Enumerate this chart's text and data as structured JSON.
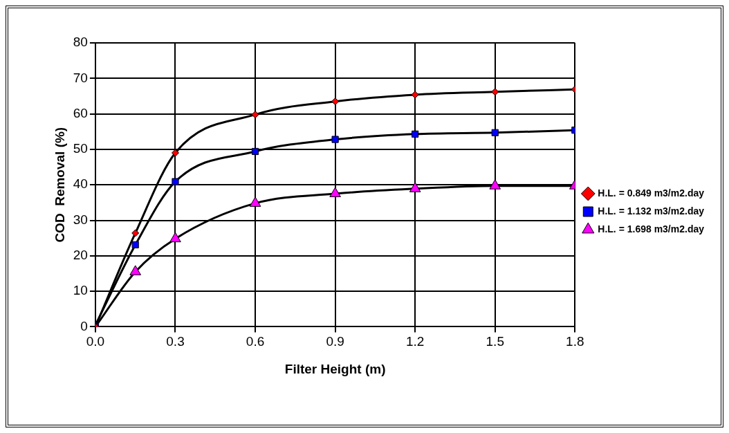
{
  "chart_data": {
    "type": "line",
    "xlabel": "Filter Height (m)",
    "ylabel": "COD  Removal (%)",
    "x": [
      0,
      0.15,
      0.3,
      0.6,
      0.9,
      1.2,
      1.5,
      1.8
    ],
    "series": [
      {
        "name": "H.L. = 0.849 m3/m2.day",
        "color": "#ff0000",
        "marker": "diamond",
        "values": [
          0,
          26.4,
          49,
          59.8,
          63.5,
          65.4,
          66.2,
          66.9
        ]
      },
      {
        "name": "H.L. = 1.132 m3/m2.day",
        "color": "#0000ff",
        "marker": "square",
        "values": [
          0.5,
          23.1,
          40.9,
          49.4,
          52.8,
          54.3,
          54.7,
          55.4
        ]
      },
      {
        "name": "H.L. = 1.698 m3/m2.day",
        "color": "#ff00ff",
        "marker": "triangle",
        "values": [
          0,
          15.5,
          24.8,
          34.8,
          37.5,
          38.9,
          39.7,
          39.7
        ]
      }
    ],
    "xlim": [
      0,
      1.8
    ],
    "xticks": [
      {
        "value": 0,
        "label": "0.0"
      },
      {
        "value": 0.3,
        "label": "0.3"
      },
      {
        "value": 0.6,
        "label": "0.6"
      },
      {
        "value": 0.9,
        "label": "0.9"
      },
      {
        "value": 1.2,
        "label": "1.2"
      },
      {
        "value": 1.5,
        "label": "1.5"
      },
      {
        "value": 1.8,
        "label": "1.8"
      }
    ],
    "ylim": [
      0,
      80
    ],
    "yticks": [
      0,
      10,
      20,
      30,
      40,
      50,
      60,
      70,
      80
    ],
    "grid": true,
    "legend": "right",
    "line_style": "solid"
  }
}
